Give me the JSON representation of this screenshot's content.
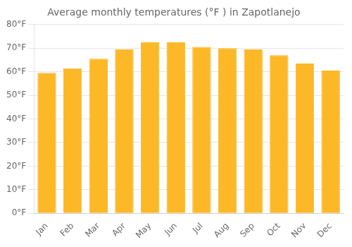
{
  "chart_data": {
    "type": "bar",
    "title": "Average monthly temperatures (°F ) in Zapotlanejo",
    "categories": [
      "Jan",
      "Feb",
      "Mar",
      "Apr",
      "May",
      "Jun",
      "Jul",
      "Aug",
      "Sep",
      "Oct",
      "Nov",
      "Dec"
    ],
    "values": [
      59.5,
      61.5,
      65.5,
      69.5,
      72.5,
      72.5,
      70.5,
      70.0,
      69.5,
      67.0,
      63.5,
      60.5
    ],
    "color": "#FDB827",
    "ylim": [
      0,
      80
    ],
    "yticks": [
      {
        "value": 0,
        "label": "0°F"
      },
      {
        "value": 10,
        "label": "10°F"
      },
      {
        "value": 20,
        "label": "20°F"
      },
      {
        "value": 30,
        "label": "30°F"
      },
      {
        "value": 40,
        "label": "40°F"
      },
      {
        "value": 50,
        "label": "50°F"
      },
      {
        "value": 60,
        "label": "60°F"
      },
      {
        "value": 70,
        "label": "70°F"
      },
      {
        "value": 80,
        "label": "80°F"
      }
    ],
    "grid": true
  }
}
